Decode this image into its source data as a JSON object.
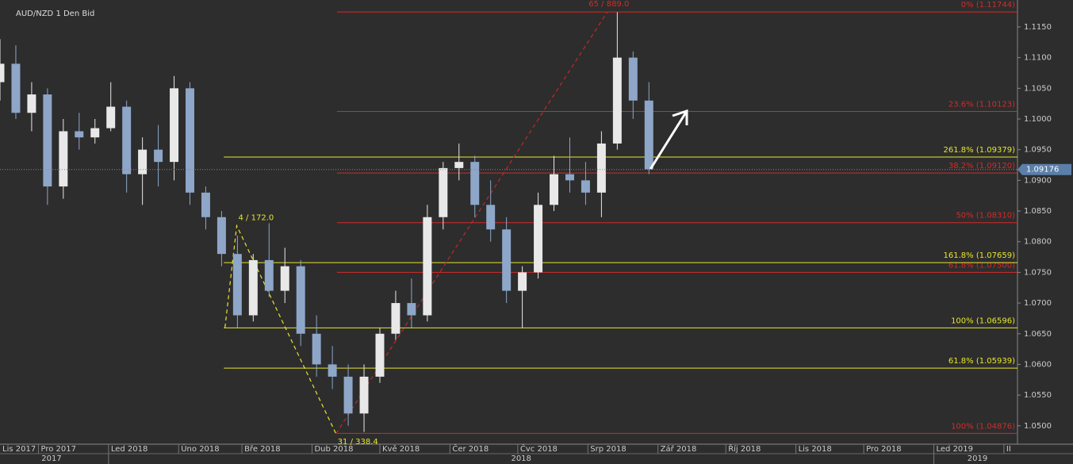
{
  "chart_data": {
    "type": "candlestick",
    "title": "AUD/NZD  1 Den Bid",
    "x": [
      -17,
      -10,
      -3,
      4,
      11,
      18,
      25,
      32,
      39,
      46,
      53,
      60,
      67,
      74,
      81,
      88,
      95,
      102,
      109,
      116,
      123,
      130,
      137,
      144,
      151,
      158,
      165,
      172,
      179,
      186,
      193,
      200,
      207,
      214,
      221,
      228,
      235,
      242,
      249,
      256,
      263,
      270
    ],
    "open": [
      1.106,
      1.109,
      1.101,
      1.104,
      1.089,
      1.098,
      1.097,
      1.0985,
      1.102,
      1.091,
      1.095,
      1.093,
      1.105,
      1.088,
      1.084,
      1.078,
      1.068,
      1.077,
      1.072,
      1.076,
      1.065,
      1.06,
      1.058,
      1.052,
      1.058,
      1.065,
      1.07,
      1.068,
      1.084,
      1.092,
      1.093,
      1.086,
      1.082,
      1.072,
      1.075,
      1.086,
      1.091,
      1.09,
      1.088,
      1.096,
      1.11,
      1.103
    ],
    "high": [
      1.113,
      1.112,
      1.106,
      1.105,
      1.1,
      1.101,
      1.1,
      1.106,
      1.103,
      1.097,
      1.099,
      1.107,
      1.106,
      1.089,
      1.085,
      1.081,
      1.078,
      1.083,
      1.079,
      1.077,
      1.068,
      1.063,
      1.06,
      1.06,
      1.066,
      1.072,
      1.074,
      1.086,
      1.093,
      1.096,
      1.094,
      1.09,
      1.084,
      1.076,
      1.088,
      1.094,
      1.097,
      1.093,
      1.098,
      1.1174,
      1.111,
      1.106
    ],
    "low": [
      1.103,
      1.1,
      1.098,
      1.086,
      1.087,
      1.095,
      1.096,
      1.098,
      1.088,
      1.086,
      1.089,
      1.09,
      1.086,
      1.082,
      1.076,
      1.066,
      1.067,
      1.071,
      1.07,
      1.063,
      1.058,
      1.056,
      1.05,
      1.049,
      1.057,
      1.064,
      1.066,
      1.067,
      1.082,
      1.09,
      1.084,
      1.08,
      1.07,
      1.066,
      1.074,
      1.085,
      1.088,
      1.086,
      1.084,
      1.095,
      1.1,
      1.091
    ],
    "close": [
      1.109,
      1.101,
      1.104,
      1.089,
      1.098,
      1.097,
      1.0985,
      1.102,
      1.091,
      1.095,
      1.093,
      1.105,
      1.088,
      1.084,
      1.078,
      1.068,
      1.077,
      1.072,
      1.076,
      1.065,
      1.06,
      1.058,
      1.052,
      1.058,
      1.065,
      1.07,
      1.068,
      1.084,
      1.092,
      1.093,
      1.086,
      1.082,
      1.072,
      1.075,
      1.086,
      1.091,
      1.09,
      1.088,
      1.096,
      1.11,
      1.103,
      1.0918
    ],
    "up_color": "#e8e8e8",
    "down_color": "#8ea6c8",
    "xlim": [
      -17,
      433
    ],
    "ylim": [
      1.047,
      1.11939
    ],
    "xticks": [
      {
        "value": -30,
        "label": "Lis 2017"
      },
      {
        "value": 0,
        "label": "Pro 2017"
      },
      {
        "value": 31,
        "label": "Led 2018"
      },
      {
        "value": 62,
        "label": "Úno 2018"
      },
      {
        "value": 90,
        "label": "Bře 2018"
      },
      {
        "value": 121,
        "label": "Dub 2018"
      },
      {
        "value": 151,
        "label": "Kvě 2018"
      },
      {
        "value": 182,
        "label": "Čer 2018"
      },
      {
        "value": 212,
        "label": "Čvc 2018"
      },
      {
        "value": 243,
        "label": "Srp 2018"
      },
      {
        "value": 274,
        "label": "Zář 2018"
      },
      {
        "value": 304,
        "label": "Říj 2018"
      },
      {
        "value": 335,
        "label": "Lis 2018"
      },
      {
        "value": 365,
        "label": "Pro 2018"
      },
      {
        "value": 396,
        "label": "Led 2019"
      },
      {
        "value": 427,
        "label": "II"
      }
    ],
    "year_ticks": [
      {
        "value": 31,
        "label": "2018"
      },
      {
        "value": 396,
        "label": "2019"
      }
    ],
    "first_year": "2017",
    "yticks": [
      {
        "value": 1.05,
        "label": "1.0500"
      },
      {
        "value": 1.055,
        "label": "1.0550"
      },
      {
        "value": 1.06,
        "label": "1.0600"
      },
      {
        "value": 1.065,
        "label": "1.0650"
      },
      {
        "value": 1.07,
        "label": "1.0700"
      },
      {
        "value": 1.075,
        "label": "1.0750"
      },
      {
        "value": 1.08,
        "label": "1.0800"
      },
      {
        "value": 1.085,
        "label": "1.0850"
      },
      {
        "value": 1.09,
        "label": "1.0900"
      },
      {
        "value": 1.095,
        "label": "1.0950"
      },
      {
        "value": 1.1,
        "label": "1.1000"
      },
      {
        "value": 1.105,
        "label": "1.1050"
      },
      {
        "value": 1.11,
        "label": "1.1100"
      },
      {
        "value": 1.115,
        "label": "1.1150"
      }
    ],
    "levels": [
      {
        "value": 1.11744,
        "label": "0% (1.11744)",
        "color": "#d42a2a",
        "start": 132
      },
      {
        "value": 1.10123,
        "label": "23.6% (1.10123)",
        "color": "#d42a2a",
        "start": 132
      },
      {
        "value": 1.0912,
        "label": "38.2% (1.09120)",
        "color": "#d42a2a",
        "start": 132
      },
      {
        "value": 1.0831,
        "label": "50% (1.08310)",
        "color": "#d42a2a",
        "start": 132
      },
      {
        "value": 1.075,
        "label": "61.8% (1.07500)",
        "color": "#d42a2a",
        "start": 132
      },
      {
        "value": 1.04876,
        "label": "100% (1.04876)",
        "color": "#d42a2a",
        "start": 132
      },
      {
        "value": 1.09379,
        "label": "261.8% (1.09379)",
        "color": "#e6e62e",
        "start": 82
      },
      {
        "value": 1.07659,
        "label": "161.8% (1.07659)",
        "color": "#e6e62e",
        "start": 82
      },
      {
        "value": 1.06596,
        "label": "100% (1.06596)",
        "color": "#e6e62e",
        "start": 82
      },
      {
        "value": 1.05939,
        "label": "61.8% (1.05939)",
        "color": "#e6e62e",
        "start": 82
      }
    ],
    "trendlines": [
      {
        "color": "#c0282a",
        "x": [
          131.6,
          251.6
        ],
        "y": [
          1.0487,
          1.11744
        ]
      },
      {
        "color": "#e6e62e",
        "x": [
          82.5,
          87.7,
          131.6
        ],
        "y": [
          1.066,
          1.0826,
          1.0487
        ]
      }
    ],
    "annotations": [
      {
        "text": "4 / 172.0",
        "x": 87.7,
        "y": 1.0826,
        "color": "#e6e62e"
      },
      {
        "text": "31 / 338.4",
        "x": 131.6,
        "y": 1.0487,
        "color": "#e6e62e"
      },
      {
        "text": "65 / 889.0",
        "x": 251.6,
        "y": 1.11744,
        "color": "#d42a2a"
      }
    ],
    "last_price": 1.09176
  }
}
